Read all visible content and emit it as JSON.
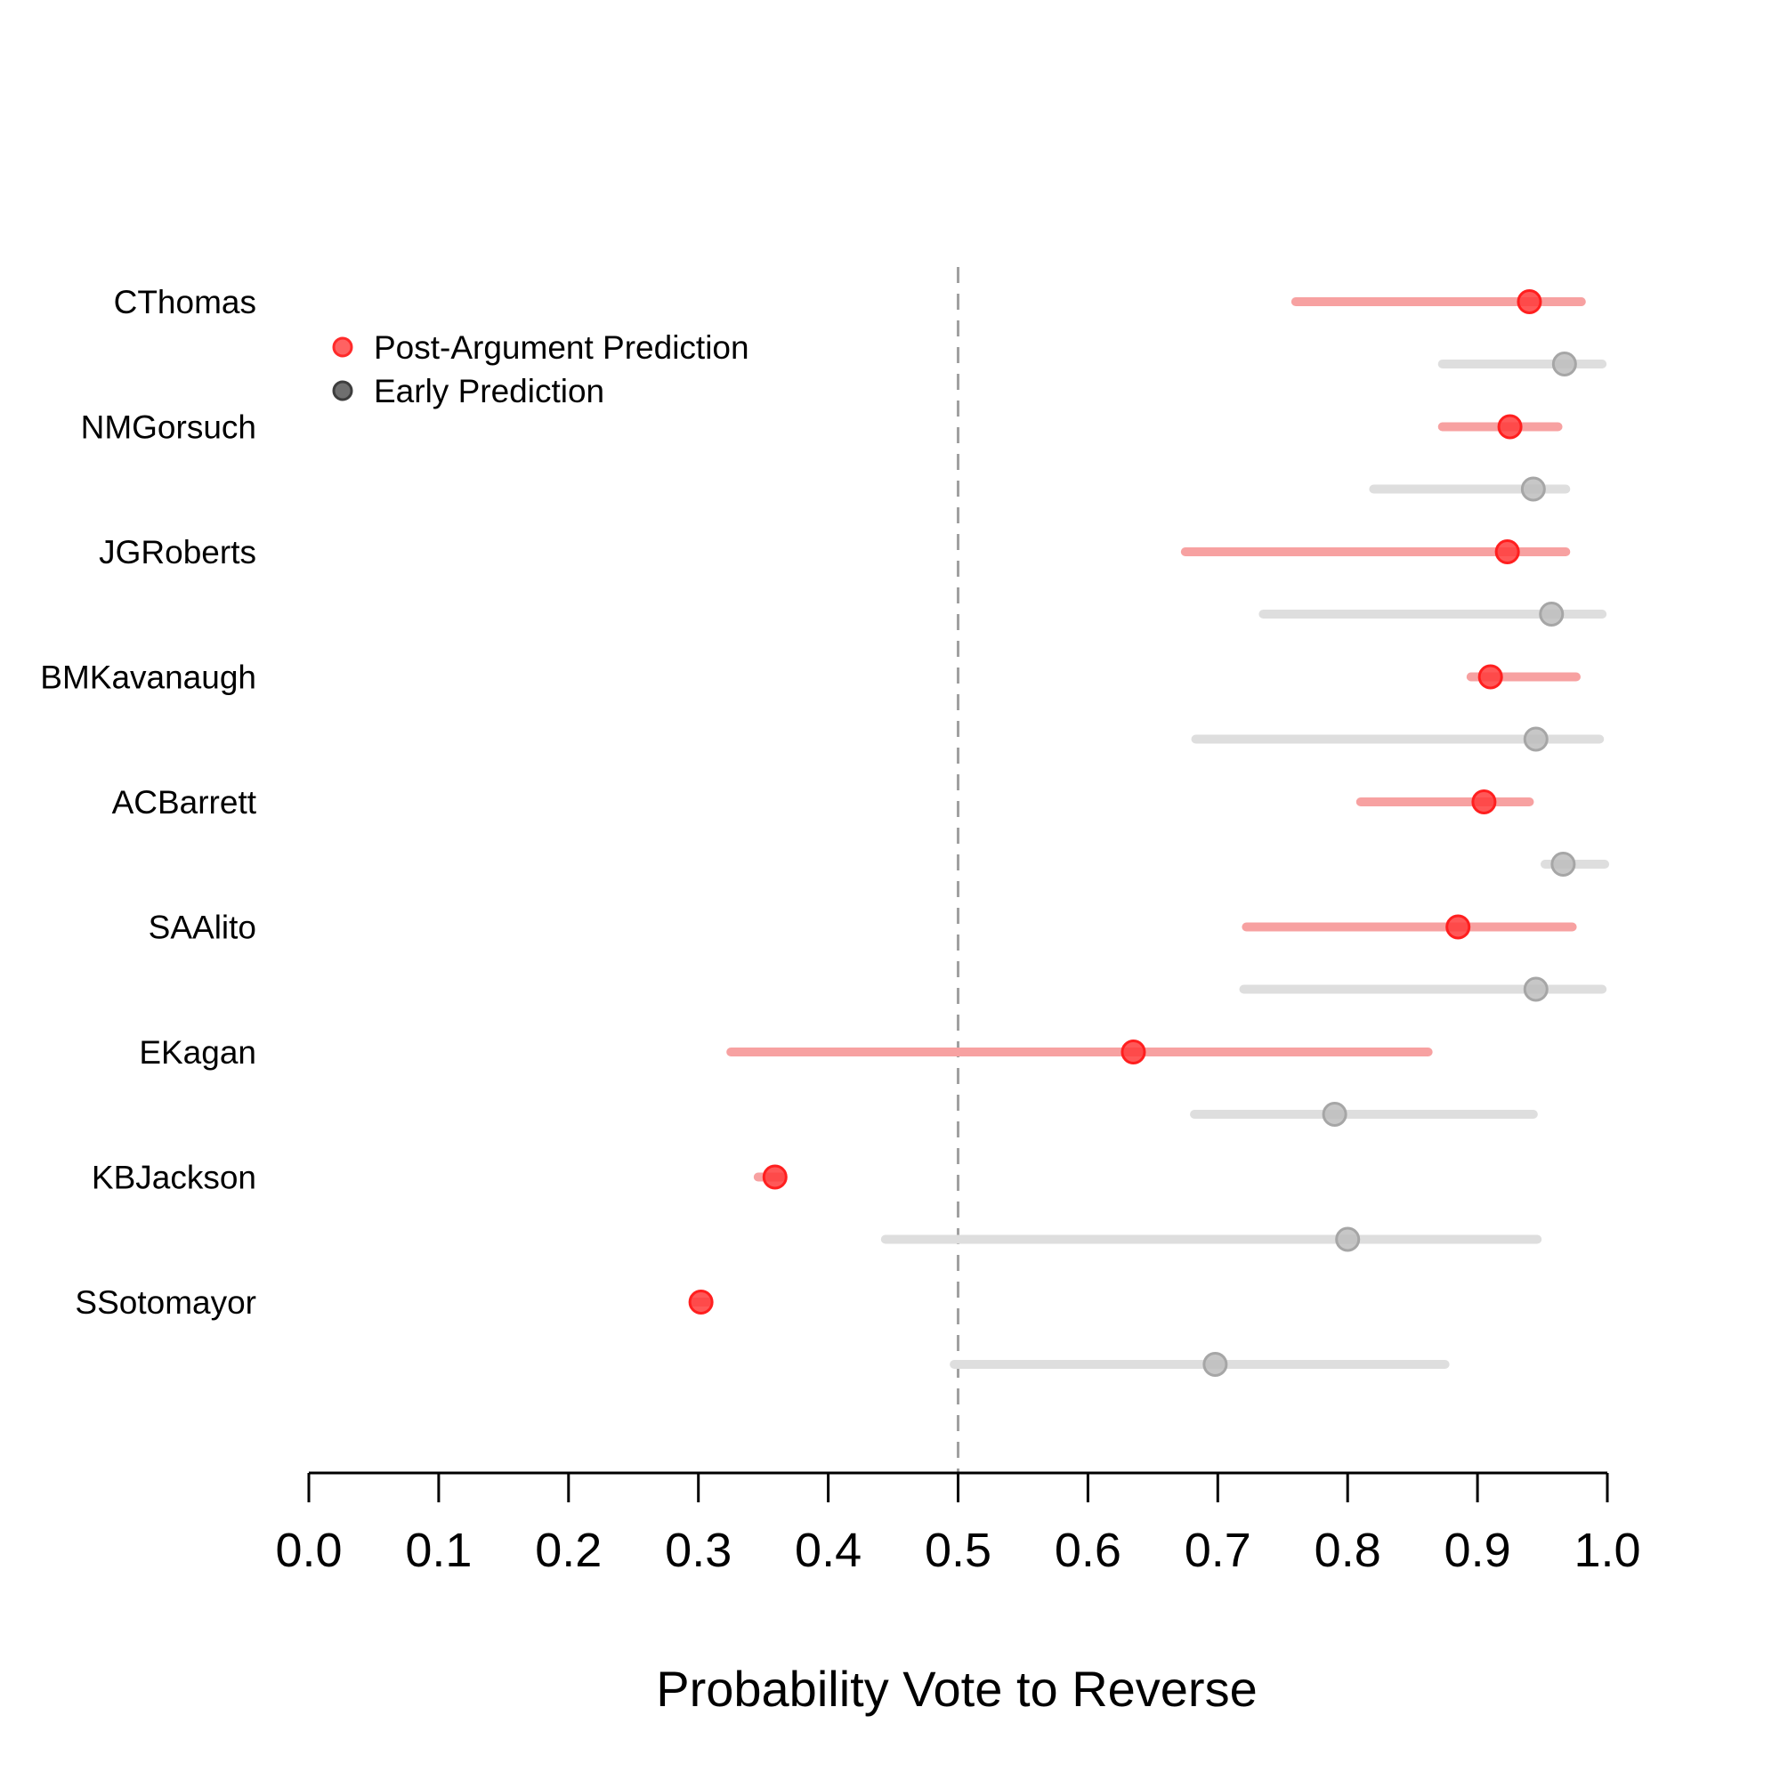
{
  "chart_data": {
    "type": "dot-interval",
    "title": "",
    "xlabel": "Probability Vote to Reverse",
    "ylabel": "",
    "xlim": [
      0.0,
      1.0
    ],
    "xticks": [
      "0.0",
      "0.1",
      "0.2",
      "0.3",
      "0.4",
      "0.5",
      "0.6",
      "0.7",
      "0.8",
      "0.9",
      "1.0"
    ],
    "reference_line": 0.5,
    "legend": {
      "placement": "top-left",
      "entries": [
        {
          "name": "Post-Argument Prediction",
          "color": "#ff2a2a"
        },
        {
          "name": "Early Prediction",
          "color": "#6e6e6e"
        }
      ]
    },
    "colors": {
      "post_point": "#ff3b3b",
      "post_interval": "#f7a1a1",
      "early_point": "#bdbdbd",
      "early_interval": "#dedede",
      "reference_line": "#a0a0a0"
    },
    "justices": [
      {
        "name": "CThomas",
        "post": {
          "value": 0.94,
          "low": 0.76,
          "high": 0.98
        },
        "early": {
          "value": 0.967,
          "low": 0.873,
          "high": 0.996
        }
      },
      {
        "name": "NMGorsuch",
        "post": {
          "value": 0.925,
          "low": 0.873,
          "high": 0.962
        },
        "early": {
          "value": 0.943,
          "low": 0.82,
          "high": 0.968
        }
      },
      {
        "name": "JGRoberts",
        "post": {
          "value": 0.923,
          "low": 0.675,
          "high": 0.968
        },
        "early": {
          "value": 0.957,
          "low": 0.735,
          "high": 0.996
        }
      },
      {
        "name": "BMKavanaugh",
        "post": {
          "value": 0.91,
          "low": 0.895,
          "high": 0.976
        },
        "early": {
          "value": 0.945,
          "low": 0.683,
          "high": 0.994
        }
      },
      {
        "name": "ACBarrett",
        "post": {
          "value": 0.905,
          "low": 0.81,
          "high": 0.94
        },
        "early": {
          "value": 0.966,
          "low": 0.952,
          "high": 0.998
        }
      },
      {
        "name": "SAAlito",
        "post": {
          "value": 0.885,
          "low": 0.722,
          "high": 0.973
        },
        "early": {
          "value": 0.945,
          "low": 0.72,
          "high": 0.996
        }
      },
      {
        "name": "EKagan",
        "post": {
          "value": 0.635,
          "low": 0.325,
          "high": 0.862
        },
        "early": {
          "value": 0.79,
          "low": 0.682,
          "high": 0.943
        }
      },
      {
        "name": "KBJackson",
        "post": {
          "value": 0.359,
          "low": 0.346,
          "high": 0.364
        },
        "early": {
          "value": 0.8,
          "low": 0.444,
          "high": 0.946
        }
      },
      {
        "name": "SSotomayor",
        "post": {
          "value": 0.302,
          "low": 0.296,
          "high": 0.308
        },
        "early": {
          "value": 0.698,
          "low": 0.497,
          "high": 0.875
        }
      }
    ]
  }
}
